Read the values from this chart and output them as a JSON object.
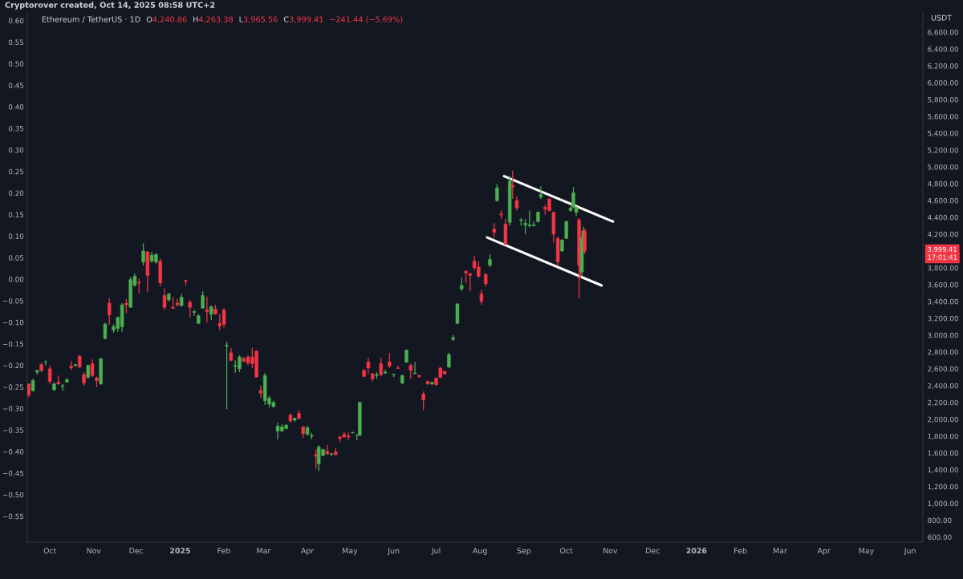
{
  "chart_data": {
    "type": "candlestick",
    "title": "Ethereum / TetherUS · 1D",
    "ylabel": "USDT",
    "annotations": [
      "Cryptorover created, Oct 14, 2025 08:58 UTC+2",
      "O4,240.86",
      "H4,263.38",
      "L3,965.56",
      "C3,999.41",
      "−241.44 (−5.69%)",
      "3,999.41",
      "17:01:41"
    ],
    "x": [
      "2024-09-16",
      "2024-09-19",
      "2024-09-22",
      "2024-09-25",
      "2024-09-28",
      "2024-10-01",
      "2024-10-04",
      "2024-10-07",
      "2024-10-10",
      "2024-10-13",
      "2024-10-16",
      "2024-10-19",
      "2024-10-22",
      "2024-10-25",
      "2024-10-28",
      "2024-10-31",
      "2024-11-03",
      "2024-11-06",
      "2024-11-09",
      "2024-11-12",
      "2024-11-15",
      "2024-11-18",
      "2024-11-21",
      "2024-11-24",
      "2024-11-27",
      "2024-11-30",
      "2024-12-03",
      "2024-12-06",
      "2024-12-09",
      "2024-12-12",
      "2024-12-15",
      "2024-12-18",
      "2024-12-21",
      "2024-12-24",
      "2024-12-27",
      "2024-12-30",
      "2025-01-02",
      "2025-01-05",
      "2025-01-08",
      "2025-01-11",
      "2025-01-14",
      "2025-01-17",
      "2025-01-20",
      "2025-01-23",
      "2025-01-26",
      "2025-01-29",
      "2025-02-01",
      "2025-02-03",
      "2025-02-06",
      "2025-02-09",
      "2025-02-12",
      "2025-02-15",
      "2025-02-18",
      "2025-02-21",
      "2025-02-24",
      "2025-02-27",
      "2025-03-02",
      "2025-03-05",
      "2025-03-08",
      "2025-03-11",
      "2025-03-14",
      "2025-03-17",
      "2025-03-20",
      "2025-03-23",
      "2025-03-26",
      "2025-03-29",
      "2025-04-01",
      "2025-04-04",
      "2025-04-07",
      "2025-04-09",
      "2025-04-12",
      "2025-04-15",
      "2025-04-18",
      "2025-04-21",
      "2025-04-24",
      "2025-04-27",
      "2025-04-30",
      "2025-05-03",
      "2025-05-06",
      "2025-05-08",
      "2025-05-11",
      "2025-05-14",
      "2025-05-17",
      "2025-05-20",
      "2025-05-23",
      "2025-05-26",
      "2025-05-29",
      "2025-06-01",
      "2025-06-04",
      "2025-06-07",
      "2025-06-10",
      "2025-06-13",
      "2025-06-16",
      "2025-06-19",
      "2025-06-22",
      "2025-06-25",
      "2025-06-28",
      "2025-07-01",
      "2025-07-04",
      "2025-07-07",
      "2025-07-10",
      "2025-07-13",
      "2025-07-16",
      "2025-07-19",
      "2025-07-22",
      "2025-07-25",
      "2025-07-28",
      "2025-07-31",
      "2025-08-02",
      "2025-08-05",
      "2025-08-08",
      "2025-08-11",
      "2025-08-13",
      "2025-08-16",
      "2025-08-19",
      "2025-08-22",
      "2025-08-24",
      "2025-08-27",
      "2025-08-30",
      "2025-09-02",
      "2025-09-05",
      "2025-09-08",
      "2025-09-11",
      "2025-09-13",
      "2025-09-16",
      "2025-09-19",
      "2025-09-22",
      "2025-09-25",
      "2025-09-28",
      "2025-10-01",
      "2025-10-04",
      "2025-10-06",
      "2025-10-08",
      "2025-10-10",
      "2025-10-11",
      "2025-10-12",
      "2025-10-13",
      "2025-10-14"
    ],
    "ohlc": [
      [
        2420,
        2420,
        2260,
        2290
      ],
      [
        2340,
        2480,
        2330,
        2460
      ],
      [
        2560,
        2590,
        2530,
        2580
      ],
      [
        2650,
        2670,
        2560,
        2580
      ],
      [
        2680,
        2700,
        2640,
        2680
      ],
      [
        2600,
        2640,
        2420,
        2450
      ],
      [
        2350,
        2440,
        2340,
        2420
      ],
      [
        2440,
        2520,
        2410,
        2420
      ],
      [
        2390,
        2420,
        2340,
        2400
      ],
      [
        2440,
        2490,
        2440,
        2470
      ],
      [
        2630,
        2690,
        2590,
        2610
      ],
      [
        2640,
        2660,
        2620,
        2650
      ],
      [
        2750,
        2760,
        2610,
        2620
      ],
      [
        2530,
        2560,
        2400,
        2430
      ],
      [
        2500,
        2650,
        2480,
        2640
      ],
      [
        2660,
        2710,
        2500,
        2520
      ],
      [
        2490,
        2510,
        2380,
        2460
      ],
      [
        2420,
        2730,
        2410,
        2720
      ],
      [
        2960,
        3150,
        2950,
        3130
      ],
      [
        3380,
        3440,
        3120,
        3240
      ],
      [
        3060,
        3130,
        3030,
        3100
      ],
      [
        3080,
        3220,
        3040,
        3210
      ],
      [
        3100,
        3380,
        3040,
        3360
      ],
      [
        3380,
        3430,
        3260,
        3360
      ],
      [
        3330,
        3690,
        3330,
        3660
      ],
      [
        3590,
        3730,
        3580,
        3700
      ],
      [
        3630,
        3670,
        3500,
        3620
      ],
      [
        3870,
        4090,
        3830,
        4000
      ],
      [
        3990,
        4000,
        3510,
        3710
      ],
      [
        3880,
        3990,
        3860,
        3950
      ],
      [
        3870,
        3970,
        3850,
        3960
      ],
      [
        3880,
        3910,
        3580,
        3620
      ],
      [
        3470,
        3560,
        3300,
        3330
      ],
      [
        3420,
        3500,
        3400,
        3490
      ],
      [
        3330,
        3450,
        3310,
        3320
      ],
      [
        3380,
        3430,
        3340,
        3360
      ],
      [
        3350,
        3490,
        3340,
        3450
      ],
      [
        3650,
        3660,
        3590,
        3640
      ],
      [
        3390,
        3420,
        3210,
        3330
      ],
      [
        3270,
        3300,
        3230,
        3280
      ],
      [
        3140,
        3250,
        3130,
        3230
      ],
      [
        3320,
        3520,
        3320,
        3470
      ],
      [
        3300,
        3460,
        3150,
        3280
      ],
      [
        3250,
        3350,
        3180,
        3340
      ],
      [
        3310,
        3360,
        3240,
        3250
      ],
      [
        3140,
        3250,
        3060,
        3110
      ],
      [
        3300,
        3320,
        3090,
        3130
      ],
      [
        2870,
        2920,
        2120,
        2880
      ],
      [
        2790,
        2850,
        2690,
        2700
      ],
      [
        2630,
        2700,
        2550,
        2640
      ],
      [
        2600,
        2760,
        2560,
        2740
      ],
      [
        2720,
        2740,
        2680,
        2690
      ],
      [
        2740,
        2760,
        2640,
        2670
      ],
      [
        2740,
        2850,
        2610,
        2660
      ],
      [
        2810,
        2820,
        2500,
        2500
      ],
      [
        2340,
        2400,
        2250,
        2310
      ],
      [
        2220,
        2550,
        2170,
        2520
      ],
      [
        2180,
        2280,
        2140,
        2250
      ],
      [
        2150,
        2220,
        2140,
        2200
      ],
      [
        1860,
        1960,
        1760,
        1920
      ],
      [
        1860,
        1940,
        1860,
        1910
      ],
      [
        1890,
        1940,
        1880,
        1930
      ],
      [
        2050,
        2070,
        1960,
        1980
      ],
      [
        1990,
        2020,
        1970,
        2010
      ],
      [
        2070,
        2110,
        2000,
        2010
      ],
      [
        1910,
        1920,
        1780,
        1830
      ],
      [
        1820,
        1920,
        1810,
        1900
      ],
      [
        1800,
        1840,
        1760,
        1810
      ],
      [
        1580,
        1640,
        1410,
        1560
      ],
      [
        1470,
        1690,
        1385,
        1670
      ],
      [
        1570,
        1650,
        1560,
        1640
      ],
      [
        1620,
        1690,
        1580,
        1590
      ],
      [
        1580,
        1600,
        1570,
        1590
      ],
      [
        1610,
        1660,
        1570,
        1580
      ],
      [
        1790,
        1800,
        1730,
        1770
      ],
      [
        1820,
        1850,
        1780,
        1790
      ],
      [
        1800,
        1840,
        1750,
        1790
      ],
      [
        1840,
        1850,
        1830,
        1845
      ],
      [
        1810,
        1820,
        1750,
        1815
      ],
      [
        1810,
        2210,
        1800,
        2200
      ],
      [
        2580,
        2600,
        2500,
        2510
      ],
      [
        2680,
        2730,
        2540,
        2610
      ],
      [
        2540,
        2550,
        2450,
        2480
      ],
      [
        2520,
        2560,
        2480,
        2530
      ],
      [
        2660,
        2730,
        2510,
        2530
      ],
      [
        2550,
        2590,
        2540,
        2560
      ],
      [
        2680,
        2790,
        2610,
        2630
      ],
      [
        2530,
        2540,
        2500,
        2535
      ],
      [
        2610,
        2640,
        2600,
        2605
      ],
      [
        2430,
        2530,
        2420,
        2520
      ],
      [
        2680,
        2830,
        2670,
        2820
      ],
      [
        2640,
        2660,
        2480,
        2580
      ],
      [
        2540,
        2680,
        2540,
        2550
      ],
      [
        2520,
        2530,
        2490,
        2510
      ],
      [
        2300,
        2330,
        2110,
        2230
      ],
      [
        2450,
        2460,
        2410,
        2420
      ],
      [
        2420,
        2440,
        2410,
        2440
      ],
      [
        2490,
        2490,
        2400,
        2410
      ],
      [
        2610,
        2620,
        2490,
        2500
      ],
      [
        2570,
        2570,
        2530,
        2540
      ],
      [
        2620,
        2790,
        2610,
        2770
      ],
      [
        2950,
        3000,
        2930,
        2970
      ],
      [
        3140,
        3380,
        3130,
        3370
      ],
      [
        3550,
        3680,
        3520,
        3590
      ],
      [
        3760,
        3770,
        3620,
        3740
      ],
      [
        3730,
        3740,
        3520,
        3710
      ],
      [
        3880,
        3940,
        3770,
        3800
      ],
      [
        3810,
        3880,
        3680,
        3700
      ],
      [
        3490,
        3540,
        3360,
        3400
      ],
      [
        3720,
        3740,
        3580,
        3610
      ],
      [
        3830,
        3960,
        3810,
        3900
      ],
      [
        4260,
        4330,
        4160,
        4220
      ],
      [
        4600,
        4790,
        4580,
        4750
      ],
      [
        4440,
        4480,
        4380,
        4430
      ],
      [
        4320,
        4380,
        4070,
        4080
      ],
      [
        4340,
        4890,
        4300,
        4830
      ],
      [
        4780,
        4955,
        4620,
        4760
      ],
      [
        4600,
        4650,
        4480,
        4510
      ],
      [
        4360,
        4390,
        4300,
        4370
      ],
      [
        4310,
        4380,
        4200,
        4330
      ],
      [
        4300,
        4480,
        4280,
        4310
      ],
      [
        4300,
        4350,
        4290,
        4310
      ],
      [
        4350,
        4470,
        4340,
        4460
      ],
      [
        4640,
        4770,
        4620,
        4670
      ],
      [
        4520,
        4550,
        4430,
        4500
      ],
      [
        4620,
        4620,
        4470,
        4480
      ],
      [
        4460,
        4470,
        4100,
        4200
      ],
      [
        4150,
        4170,
        3820,
        3870
      ],
      [
        4000,
        4140,
        3990,
        4130
      ],
      [
        4150,
        4360,
        4140,
        4350
      ],
      [
        4480,
        4530,
        4470,
        4510
      ],
      [
        4520,
        4760,
        4510,
        4690
      ],
      [
        4460,
        4530,
        4420,
        4520
      ],
      [
        4370,
        4390,
        3435,
        3830
      ],
      [
        3830,
        3900,
        3670,
        3750
      ],
      [
        3750,
        4180,
        3710,
        4150
      ],
      [
        4150,
        4290,
        4080,
        4240
      ],
      [
        4240.86,
        4263.38,
        3965.56,
        3999.41
      ]
    ],
    "colors": [
      "#f23645",
      "#4caf50",
      "#4caf50",
      "#f23645",
      "#4caf50",
      "#f23645",
      "#4caf50",
      "#f23645",
      "#4caf50",
      "#4caf50",
      "#f23645",
      "#4caf50",
      "#f23645",
      "#f23645",
      "#4caf50",
      "#f23645",
      "#f23645",
      "#4caf50",
      "#4caf50",
      "#f23645",
      "#4caf50",
      "#4caf50",
      "#4caf50",
      "#f23645",
      "#4caf50",
      "#4caf50",
      "#f23645",
      "#4caf50",
      "#f23645",
      "#4caf50",
      "#4caf50",
      "#f23645",
      "#f23645",
      "#4caf50",
      "#f23645",
      "#f23645",
      "#4caf50",
      "#f23645",
      "#f23645",
      "#4caf50",
      "#4caf50",
      "#4caf50",
      "#f23645",
      "#4caf50",
      "#f23645",
      "#f23645",
      "#f23645",
      "#4caf50",
      "#f23645",
      "#4caf50",
      "#4caf50",
      "#f23645",
      "#f23645",
      "#f23645",
      "#f23645",
      "#f23645",
      "#4caf50",
      "#4caf50",
      "#4caf50",
      "#4caf50",
      "#4caf50",
      "#4caf50",
      "#f23645",
      "#4caf50",
      "#f23645",
      "#f23645",
      "#4caf50",
      "#4caf50",
      "#f23645",
      "#4caf50",
      "#4caf50",
      "#f23645",
      "#4caf50",
      "#f23645",
      "#f23645",
      "#f23645",
      "#f23645",
      "#4caf50",
      "#4caf50",
      "#4caf50",
      "#f23645",
      "#f23645",
      "#f23645",
      "#4caf50",
      "#f23645",
      "#4caf50",
      "#f23645",
      "#4caf50",
      "#f23645",
      "#4caf50",
      "#4caf50",
      "#f23645",
      "#4caf50",
      "#f23645",
      "#f23645",
      "#f23645",
      "#4caf50",
      "#f23645",
      "#f23645",
      "#f23645",
      "#4caf50",
      "#4caf50",
      "#4caf50",
      "#4caf50",
      "#f23645",
      "#f23645",
      "#f23645",
      "#f23645",
      "#f23645",
      "#f23645",
      "#4caf50",
      "#f23645",
      "#4caf50",
      "#f23645",
      "#f23645",
      "#4caf50",
      "#f23645",
      "#f23645",
      "#4caf50",
      "#4caf50",
      "#4caf50",
      "#4caf50",
      "#4caf50",
      "#4caf50",
      "#f23645",
      "#f23645",
      "#f23645",
      "#f23645",
      "#4caf50",
      "#4caf50",
      "#4caf50",
      "#4caf50",
      "#4caf50",
      "#f23645",
      "#f23645",
      "#4caf50",
      "#4caf50",
      "#f23645"
    ],
    "series": [
      {
        "type": "line",
        "x": [
          "2025-08-18",
          "2025-11-03"
        ],
        "values": [
          4890,
          4350
        ],
        "color": "#ffffff"
      },
      {
        "type": "line",
        "x": [
          "2025-08-06",
          "2025-10-26"
        ],
        "values": [
          4160,
          3590
        ],
        "color": "#ffffff"
      }
    ],
    "xlim": [
      "2024-09-15",
      "2026-06-10"
    ],
    "xticks": [
      {
        "value": "2024-10-01",
        "label": "Oct"
      },
      {
        "value": "2024-11-01",
        "label": "Nov"
      },
      {
        "value": "2024-12-01",
        "label": "Dec"
      },
      {
        "value": "2025-01-01",
        "label": "2025"
      },
      {
        "value": "2025-02-01",
        "label": "Feb"
      },
      {
        "value": "2025-03-01",
        "label": "Mar"
      },
      {
        "value": "2025-04-01",
        "label": "Apr"
      },
      {
        "value": "2025-05-01",
        "label": "May"
      },
      {
        "value": "2025-06-01",
        "label": "Jun"
      },
      {
        "value": "2025-07-01",
        "label": "Jul"
      },
      {
        "value": "2025-08-01",
        "label": "Aug"
      },
      {
        "value": "2025-09-01",
        "label": "Sep"
      },
      {
        "value": "2025-10-01",
        "label": "Oct"
      },
      {
        "value": "2025-11-01",
        "label": "Nov"
      },
      {
        "value": "2025-12-01",
        "label": "Dec"
      },
      {
        "value": "2026-01-01",
        "label": "2026"
      },
      {
        "value": "2026-02-01",
        "label": "Feb"
      },
      {
        "value": "2026-03-01",
        "label": "Mar"
      },
      {
        "value": "2026-04-01",
        "label": "Apr"
      },
      {
        "value": "2026-05-01",
        "label": "May"
      },
      {
        "value": "2026-06-01",
        "label": "Jun"
      }
    ],
    "ylim": [
      540,
      6840
    ],
    "yticks": [
      {
        "value": 600,
        "label": "600.00"
      },
      {
        "value": 800,
        "label": "800.00"
      },
      {
        "value": 1000,
        "label": "1,000.00"
      },
      {
        "value": 1200,
        "label": "1,200.00"
      },
      {
        "value": 1400,
        "label": "1,400.00"
      },
      {
        "value": 1600,
        "label": "1,600.00"
      },
      {
        "value": 1800,
        "label": "1,800.00"
      },
      {
        "value": 2000,
        "label": "2,000.00"
      },
      {
        "value": 2200,
        "label": "2,200.00"
      },
      {
        "value": 2400,
        "label": "2,400.00"
      },
      {
        "value": 2600,
        "label": "2,600.00"
      },
      {
        "value": 2800,
        "label": "2,800.00"
      },
      {
        "value": 3000,
        "label": "3,000.00"
      },
      {
        "value": 3200,
        "label": "3,200.00"
      },
      {
        "value": 3400,
        "label": "3,400.00"
      },
      {
        "value": 3600,
        "label": "3,600.00"
      },
      {
        "value": 3800,
        "label": "3,800.00"
      },
      {
        "value": 4200,
        "label": "4,200.00"
      },
      {
        "value": 4400,
        "label": "4,400.00"
      },
      {
        "value": 4600,
        "label": "4,600.00"
      },
      {
        "value": 4800,
        "label": "4,800.00"
      },
      {
        "value": 5000,
        "label": "5,000.00"
      },
      {
        "value": 5200,
        "label": "5,200.00"
      },
      {
        "value": 5400,
        "label": "5,400.00"
      },
      {
        "value": 5600,
        "label": "5,600.00"
      },
      {
        "value": 5800,
        "label": "5,800.00"
      },
      {
        "value": 6000,
        "label": "6,000.00"
      },
      {
        "value": 6200,
        "label": "6,200.00"
      },
      {
        "value": 6400,
        "label": "6,400.00"
      },
      {
        "value": 6600,
        "label": "6,600.00"
      }
    ],
    "y2lim": [
      -0.61,
      0.62
    ],
    "y2ticks": [
      {
        "value": 0.6,
        "label": "0.60"
      },
      {
        "value": 0.55,
        "label": "0.55"
      },
      {
        "value": 0.5,
        "label": "0.50"
      },
      {
        "value": 0.45,
        "label": "0.45"
      },
      {
        "value": 0.4,
        "label": "0.40"
      },
      {
        "value": 0.35,
        "label": "0.35"
      },
      {
        "value": 0.3,
        "label": "0.30"
      },
      {
        "value": 0.25,
        "label": "0.25"
      },
      {
        "value": 0.2,
        "label": "0.20"
      },
      {
        "value": 0.15,
        "label": "0.15"
      },
      {
        "value": 0.1,
        "label": "0.10"
      },
      {
        "value": 0.05,
        "label": "0.05"
      },
      {
        "value": 0,
        "label": "0.00"
      },
      {
        "value": -0.05,
        "label": "−0.05"
      },
      {
        "value": -0.1,
        "label": "−0.10"
      },
      {
        "value": -0.15,
        "label": "−0.15"
      },
      {
        "value": -0.2,
        "label": "−0.20"
      },
      {
        "value": -0.25,
        "label": "−0.25"
      },
      {
        "value": -0.3,
        "label": "−0.30"
      },
      {
        "value": -0.35,
        "label": "−0.35"
      },
      {
        "value": -0.4,
        "label": "−0.40"
      },
      {
        "value": -0.45,
        "label": "−0.45"
      },
      {
        "value": -0.5,
        "label": "−0.50"
      },
      {
        "value": -0.55,
        "label": "−0.55"
      }
    ]
  }
}
